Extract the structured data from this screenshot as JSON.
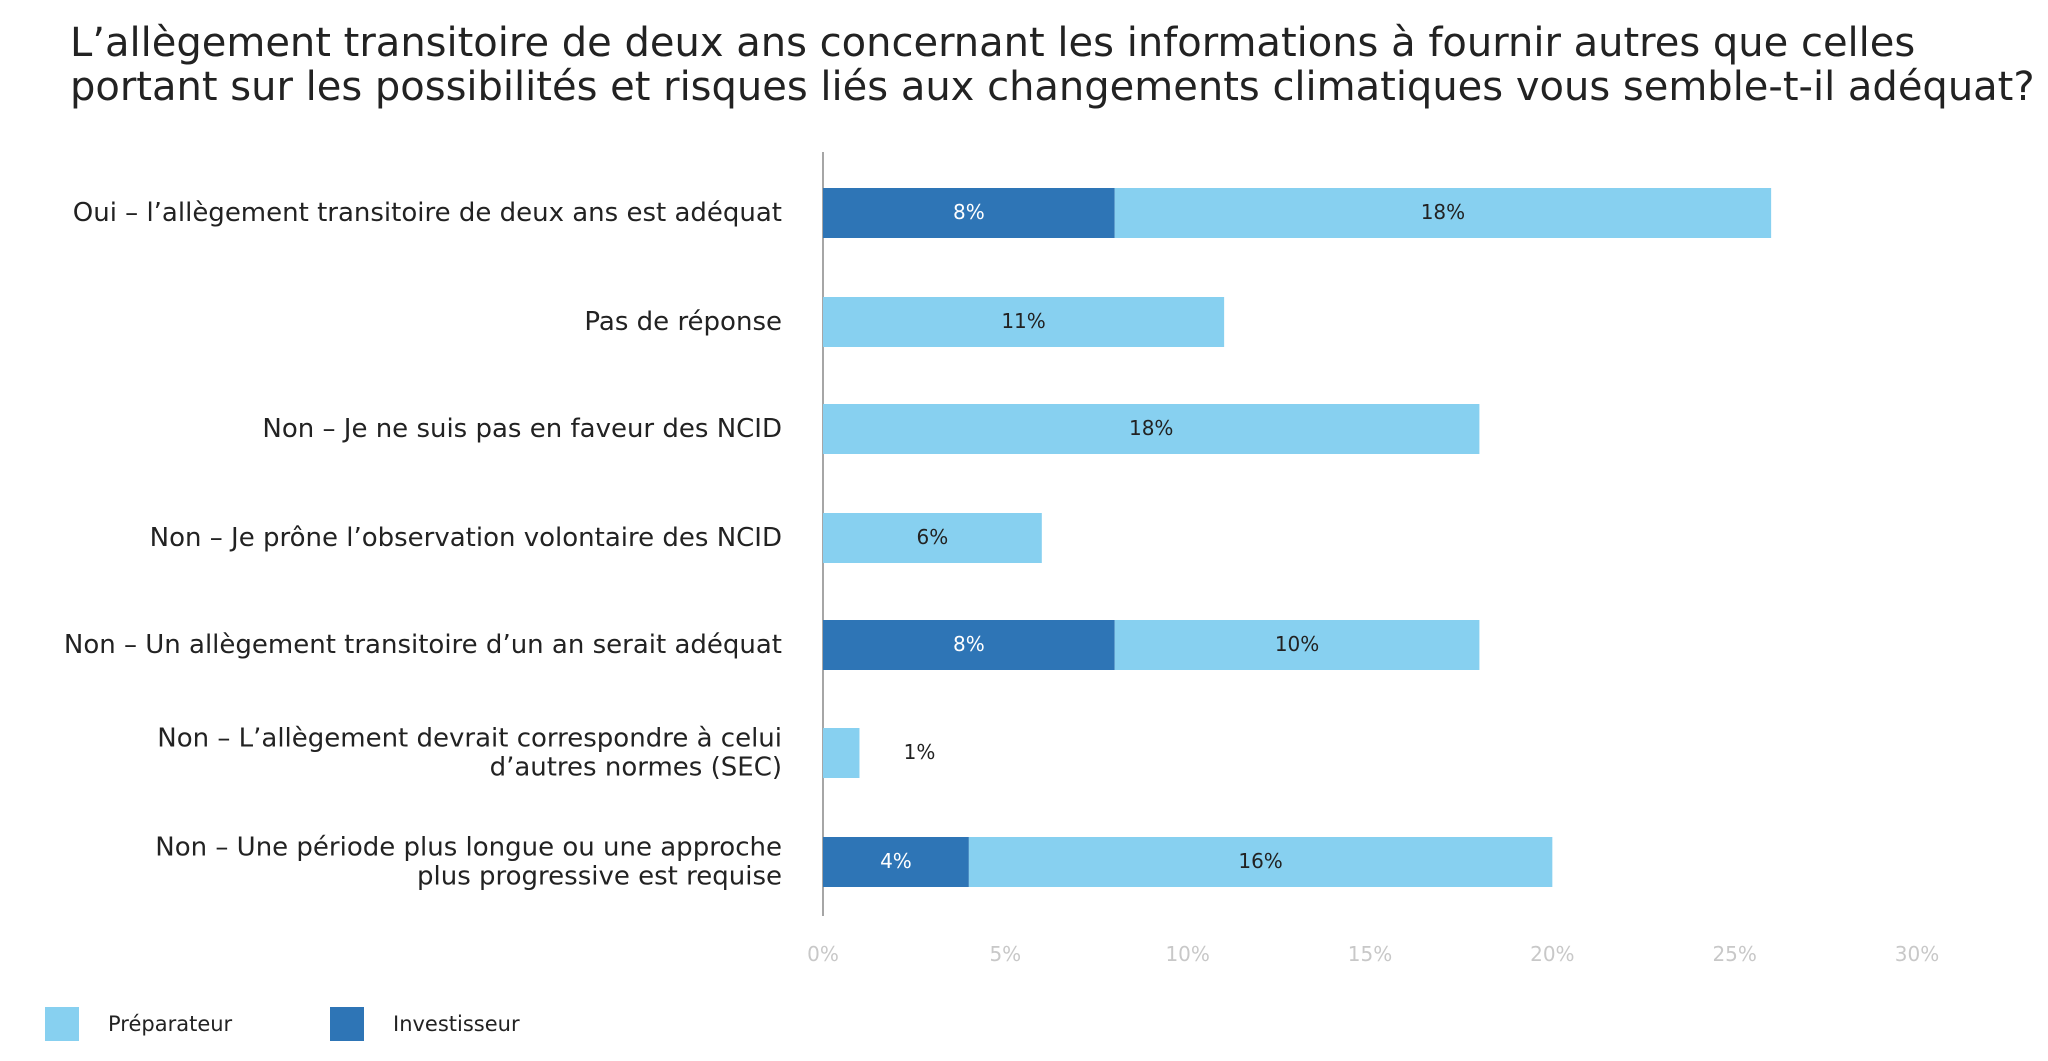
{
  "chart_data": {
    "type": "stacked-barh",
    "title": "L’allègement transitoire de deux ans concernant les informations à fournir autres que celles\nportant sur les possibilités et risques liés aux changements climatiques vous semble-t-il adéquat?",
    "categories": [
      "Oui – l’allègement transitoire de deux ans est adéquat",
      "Pas de réponse",
      "Non – Je ne suis pas en faveur des NCID",
      "Non – Je prône l’observation volontaire des NCID",
      "Non – Un allègement transitoire d’un an serait adéquat",
      "Non – L’allègement devrait correspondre à celui\nd’autres normes (SEC)",
      "Non – Une période plus longue ou une approche\nplus progressive est requise"
    ],
    "series": [
      {
        "name": "Investisseur",
        "color": "#2e75b6",
        "values": [
          8,
          null,
          null,
          null,
          8,
          null,
          4
        ],
        "value_labels": [
          "8%",
          null,
          null,
          null,
          "8%",
          null,
          "4%"
        ]
      },
      {
        "name": "Préparateur",
        "color": "#87d0f0",
        "values": [
          18,
          11,
          18,
          6,
          10,
          1,
          16
        ],
        "value_labels": [
          "18%",
          "11%",
          "18%",
          "6%",
          "10%",
          "1%",
          "16%"
        ]
      }
    ],
    "xlim": [
      0,
      30
    ],
    "xticks": [
      {
        "value": 0,
        "label": "0%"
      },
      {
        "value": 5,
        "label": "5%"
      },
      {
        "value": 10,
        "label": "10%"
      },
      {
        "value": 15,
        "label": "15%"
      },
      {
        "value": 20,
        "label": "20%"
      },
      {
        "value": 25,
        "label": "25%"
      },
      {
        "value": 30,
        "label": "30%"
      }
    ],
    "legend": "bottom-left"
  }
}
